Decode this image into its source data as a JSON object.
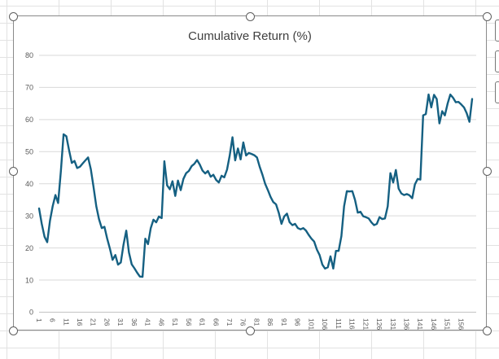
{
  "app": {
    "context_label": "Excel worksheet with selected embedded chart"
  },
  "chart": {
    "title": "Cumulative Return (%)",
    "title_color": "#404040",
    "label_color": "#595959",
    "gridline_color": "#d9d9d9",
    "axis_line_color": "#c3c3c3",
    "series_color": "#156082",
    "frame_border_color": "#8a8a8a"
  },
  "selection": {
    "handle_names": [
      "top-left",
      "top-mid",
      "top-right",
      "mid-left",
      "mid-right",
      "bottom-left",
      "bottom-mid",
      "bottom-right"
    ],
    "side_button_names": [
      "chart-elements-button",
      "chart-styles-button",
      "chart-filters-button"
    ]
  },
  "chart_data": {
    "type": "line",
    "title": "Cumulative Return (%)",
    "n_points": 160,
    "x_tick_labels": [
      "1",
      "6",
      "11",
      "16",
      "21",
      "26",
      "31",
      "36",
      "41",
      "46",
      "51",
      "56",
      "61",
      "66",
      "71",
      "76",
      "81",
      "86",
      "91",
      "96",
      "101",
      "106",
      "111",
      "116",
      "121",
      "126",
      "131",
      "136",
      "141",
      "146",
      "151",
      "156"
    ],
    "x_tick_interval": 5,
    "y_ticks": [
      0,
      10,
      20,
      30,
      40,
      50,
      60,
      70,
      80
    ],
    "ylim": [
      0,
      80
    ],
    "grid": true,
    "legend": false,
    "values": [
      32.3,
      27.5,
      23.5,
      21.8,
      28.5,
      33.0,
      36.5,
      34.0,
      44.0,
      55.4,
      54.8,
      50.5,
      46.5,
      47.1,
      44.9,
      45.3,
      46.3,
      47.3,
      48.2,
      44.5,
      39.0,
      33.0,
      29.0,
      26.2,
      26.6,
      23.0,
      19.8,
      16.3,
      17.8,
      14.8,
      15.5,
      21.0,
      25.4,
      18.6,
      14.9,
      13.7,
      12.3,
      11.1,
      11.0,
      22.9,
      21.2,
      26.2,
      28.8,
      28.0,
      29.8,
      29.3,
      47.0,
      39.5,
      38.3,
      40.8,
      36.2,
      41.0,
      38.0,
      41.5,
      43.3,
      44.0,
      45.5,
      46.2,
      47.4,
      46.0,
      44.1,
      43.2,
      44.0,
      42.2,
      42.8,
      41.2,
      40.4,
      42.5,
      42.0,
      44.4,
      48.8,
      54.5,
      47.3,
      51.0,
      47.6,
      52.9,
      48.8,
      49.6,
      49.3,
      48.9,
      48.2,
      45.3,
      42.8,
      40.0,
      38.0,
      35.9,
      34.3,
      33.6,
      31.0,
      27.5,
      29.8,
      30.7,
      28.0,
      27.1,
      27.5,
      26.2,
      25.8,
      26.2,
      25.4,
      24.1,
      22.9,
      22.0,
      19.5,
      17.8,
      14.8,
      13.6,
      14.0,
      17.4,
      13.6,
      19.1,
      19.1,
      23.7,
      33.0,
      37.7,
      37.6,
      37.7,
      35.0,
      31.0,
      31.3,
      29.9,
      29.6,
      29.2,
      28.0,
      27.1,
      27.5,
      29.6,
      29.0,
      29.2,
      33.0,
      43.3,
      40.4,
      44.3,
      38.5,
      37.0,
      36.5,
      36.8,
      36.4,
      35.5,
      39.8,
      41.5,
      41.3,
      61.3,
      61.7,
      67.8,
      63.8,
      67.7,
      66.4,
      58.8,
      62.6,
      61.3,
      65.0,
      67.8,
      66.8,
      65.4,
      65.5,
      64.7,
      63.8,
      62.0,
      59.3,
      66.4
    ]
  }
}
